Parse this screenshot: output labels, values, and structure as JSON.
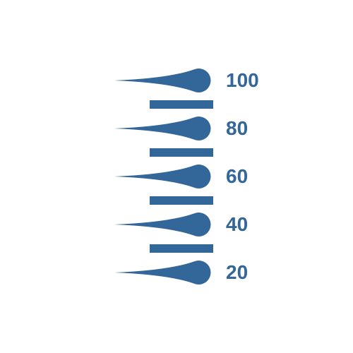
{
  "scale": {
    "type": "gauge-scale",
    "color": "#336699",
    "background_color": "#ffffff",
    "label_fontsize": 28,
    "label_fontweight": 700,
    "major_tick_width": 140,
    "major_tick_height": 34,
    "minor_tick_width": 90,
    "minor_tick_height": 12,
    "ticks": [
      {
        "kind": "major",
        "value": 100,
        "label": "100"
      },
      {
        "kind": "minor"
      },
      {
        "kind": "major",
        "value": 80,
        "label": "80"
      },
      {
        "kind": "minor"
      },
      {
        "kind": "major",
        "value": 60,
        "label": "60"
      },
      {
        "kind": "minor"
      },
      {
        "kind": "major",
        "value": 40,
        "label": "40"
      },
      {
        "kind": "minor"
      },
      {
        "kind": "major",
        "value": 20,
        "label": "20"
      }
    ]
  }
}
